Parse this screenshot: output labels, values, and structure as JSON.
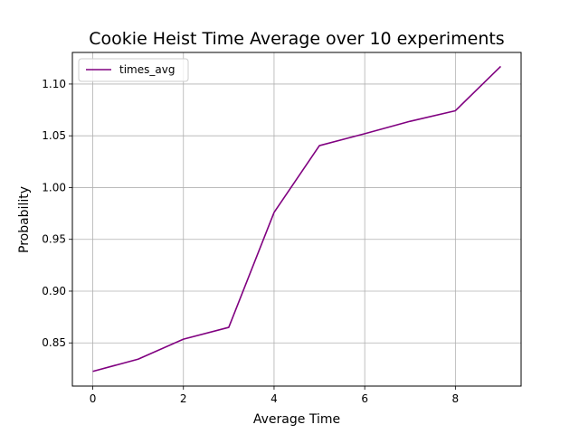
{
  "chart_data": {
    "type": "line",
    "title": "Cookie Heist Time Average over 10 experiments",
    "xlabel": "Average Time",
    "ylabel": "Probability",
    "xlim": [
      -0.45,
      9.45
    ],
    "ylim": [
      0.8083,
      1.1305
    ],
    "x_ticks": [
      0,
      2,
      4,
      6,
      8
    ],
    "x_tick_labels": [
      "0",
      "2",
      "4",
      "6",
      "8"
    ],
    "y_ticks": [
      0.85,
      0.9,
      0.95,
      1.0,
      1.05,
      1.1
    ],
    "y_tick_labels": [
      "0.85",
      "0.90",
      "0.95",
      "1.00",
      "1.05",
      "1.10"
    ],
    "grid": true,
    "legend_position": "top-left",
    "series": [
      {
        "name": "times_avg",
        "color": "#800080",
        "x": [
          0,
          1,
          2,
          3,
          4,
          5,
          6,
          7,
          8,
          9
        ],
        "y": [
          0.8225,
          0.8343,
          0.8536,
          0.865,
          0.976,
          1.0405,
          1.052,
          1.064,
          1.0742,
          1.117
        ]
      }
    ]
  }
}
